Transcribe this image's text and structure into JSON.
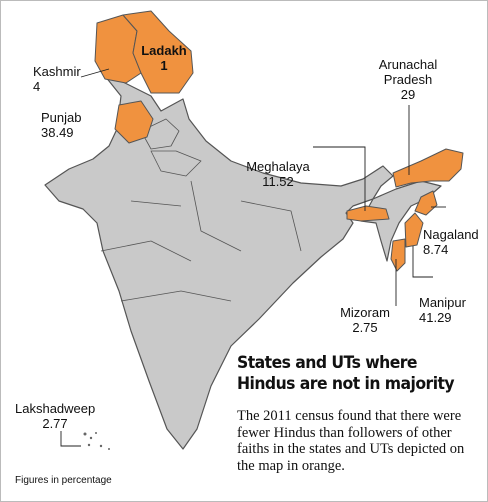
{
  "heading": "States and UTs where Hindus are not in majority",
  "description": "The 2011 census found that there were fewer Hindus than followers of other faiths in the states and UTs depicted on the map in orange.",
  "note": "Figures in percentage",
  "regions": [
    {
      "name": "Kashmir",
      "value": 4
    },
    {
      "name": "Ladakh",
      "value": 1
    },
    {
      "name": "Punjab",
      "value": 38.49
    },
    {
      "name": "Arunachal Pradesh",
      "value": 29
    },
    {
      "name": "Meghalaya",
      "value": 11.52
    },
    {
      "name": "Nagaland",
      "value": 8.74
    },
    {
      "name": "Mizoram",
      "value": 2.75
    },
    {
      "name": "Manipur",
      "value": 41.29
    },
    {
      "name": "Lakshadweep",
      "value": 2.77
    }
  ]
}
